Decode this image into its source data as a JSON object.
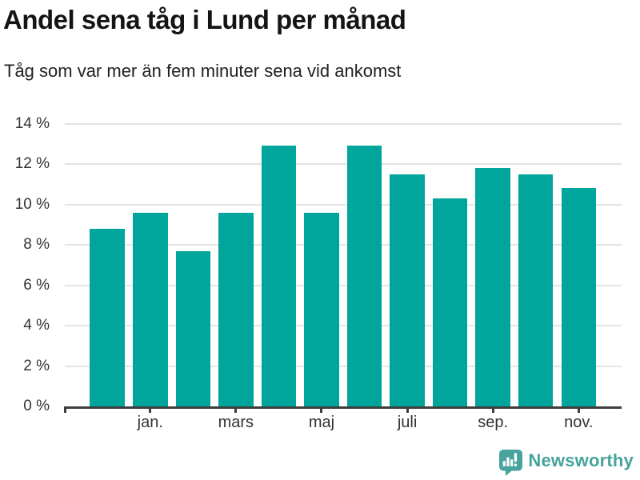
{
  "header": {
    "title": "Andel sena tåg i Lund per månad",
    "subtitle": "Tåg som var mer än fem minuter sena vid ankomst"
  },
  "chart_data": {
    "type": "bar",
    "title": "Andel sena tåg i Lund per månad",
    "subtitle": "Tåg som var mer än fem minuter sena vid ankomst",
    "unit": "percent",
    "values": [
      8.8,
      9.6,
      7.7,
      9.6,
      12.9,
      9.6,
      12.9,
      11.5,
      10.3,
      11.8,
      11.5,
      10.8
    ],
    "x_tick_labels": [
      "jan.",
      "mars",
      "maj",
      "juli",
      "sep.",
      "nov."
    ],
    "x_tick_bar_indices": [
      1,
      3,
      5,
      7,
      9,
      11
    ],
    "y_tick_labels": [
      "0 %",
      "2 %",
      "4 %",
      "6 %",
      "8 %",
      "10 %",
      "12 %",
      "14 %"
    ],
    "y_tick_values": [
      0,
      2,
      4,
      6,
      8,
      10,
      12,
      14
    ],
    "ylim": [
      0,
      14
    ],
    "grid": true,
    "legend_position": "none",
    "bar_color": "#00a59b",
    "gridline_color": "#e4e4e4",
    "axis_color": "#3e3e3e",
    "label_color": "#333333"
  },
  "branding": {
    "logo_text": "Newsworthy",
    "logo_color": "#47a49d",
    "logo_icon": "bar-chart-speech-bubble"
  }
}
